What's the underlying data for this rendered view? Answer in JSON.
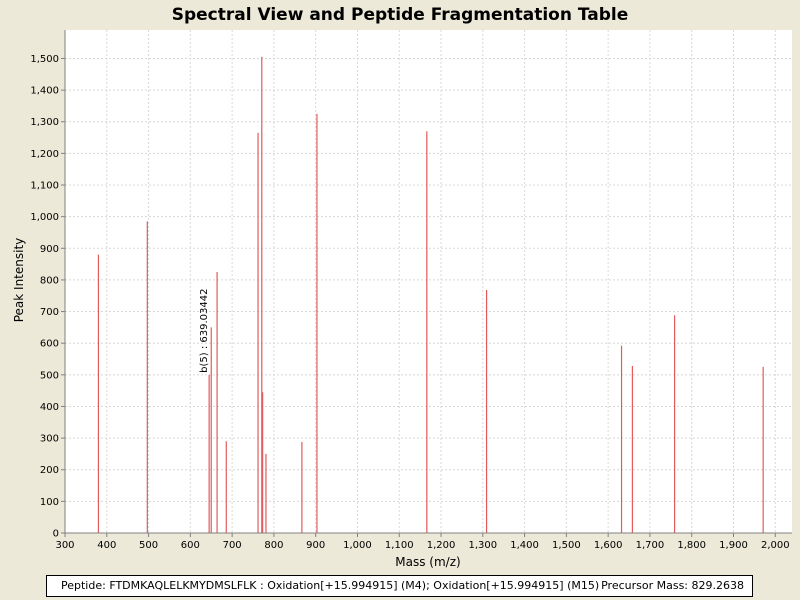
{
  "chart_data": {
    "type": "bar",
    "title": "Spectral View and Peptide Fragmentation Table",
    "xlabel": "Mass (m/z)",
    "ylabel": "Peak Intensity",
    "xlim": [
      300,
      2040
    ],
    "ylim": [
      0,
      1590
    ],
    "x_ticks": [
      300,
      400,
      500,
      600,
      700,
      800,
      900,
      1000,
      1100,
      1200,
      1300,
      1400,
      1500,
      1600,
      1700,
      1800,
      1900,
      2000
    ],
    "y_ticks": [
      0,
      100,
      200,
      300,
      400,
      500,
      600,
      700,
      800,
      900,
      1000,
      1100,
      1200,
      1300,
      1400,
      1500
    ],
    "x_tick_labels": [
      "300",
      "400",
      "500",
      "600",
      "700",
      "800",
      "900",
      "1,000",
      "1,100",
      "1,200",
      "1,300",
      "1,400",
      "1,500",
      "1,600",
      "1,700",
      "1,800",
      "1,900",
      "2,000"
    ],
    "y_tick_labels": [
      "0",
      "100",
      "200",
      "300",
      "400",
      "500",
      "600",
      "700",
      "800",
      "900",
      "1,000",
      "1,100",
      "1,200",
      "1,300",
      "1,400",
      "1,500"
    ],
    "grid": true,
    "color": "#e25b5b",
    "peaks": [
      {
        "mz": 380,
        "intensity": 880
      },
      {
        "mz": 497,
        "intensity": 985
      },
      {
        "mz": 645,
        "intensity": 500
      },
      {
        "mz": 650,
        "intensity": 650
      },
      {
        "mz": 664,
        "intensity": 825
      },
      {
        "mz": 686,
        "intensity": 290
      },
      {
        "mz": 762,
        "intensity": 1265
      },
      {
        "mz": 771,
        "intensity": 1505
      },
      {
        "mz": 773,
        "intensity": 445
      },
      {
        "mz": 781,
        "intensity": 250
      },
      {
        "mz": 867,
        "intensity": 288
      },
      {
        "mz": 903,
        "intensity": 1325
      },
      {
        "mz": 1166,
        "intensity": 1270
      },
      {
        "mz": 1309,
        "intensity": 768
      },
      {
        "mz": 1632,
        "intensity": 592
      },
      {
        "mz": 1658,
        "intensity": 528
      },
      {
        "mz": 1759,
        "intensity": 688
      },
      {
        "mz": 1971,
        "intensity": 525
      }
    ],
    "annotations": [
      {
        "text": "b(5) : 639.03442",
        "mz": 645,
        "intensity": 500
      }
    ]
  },
  "footer": {
    "peptide": "Peptide: FTDMKAQLELKMYDMSLFLK : Oxidation[+15.994915] (M4); Oxidation[+15.994915] (M15)",
    "precursor": "Precursor Mass: 829.2638"
  }
}
